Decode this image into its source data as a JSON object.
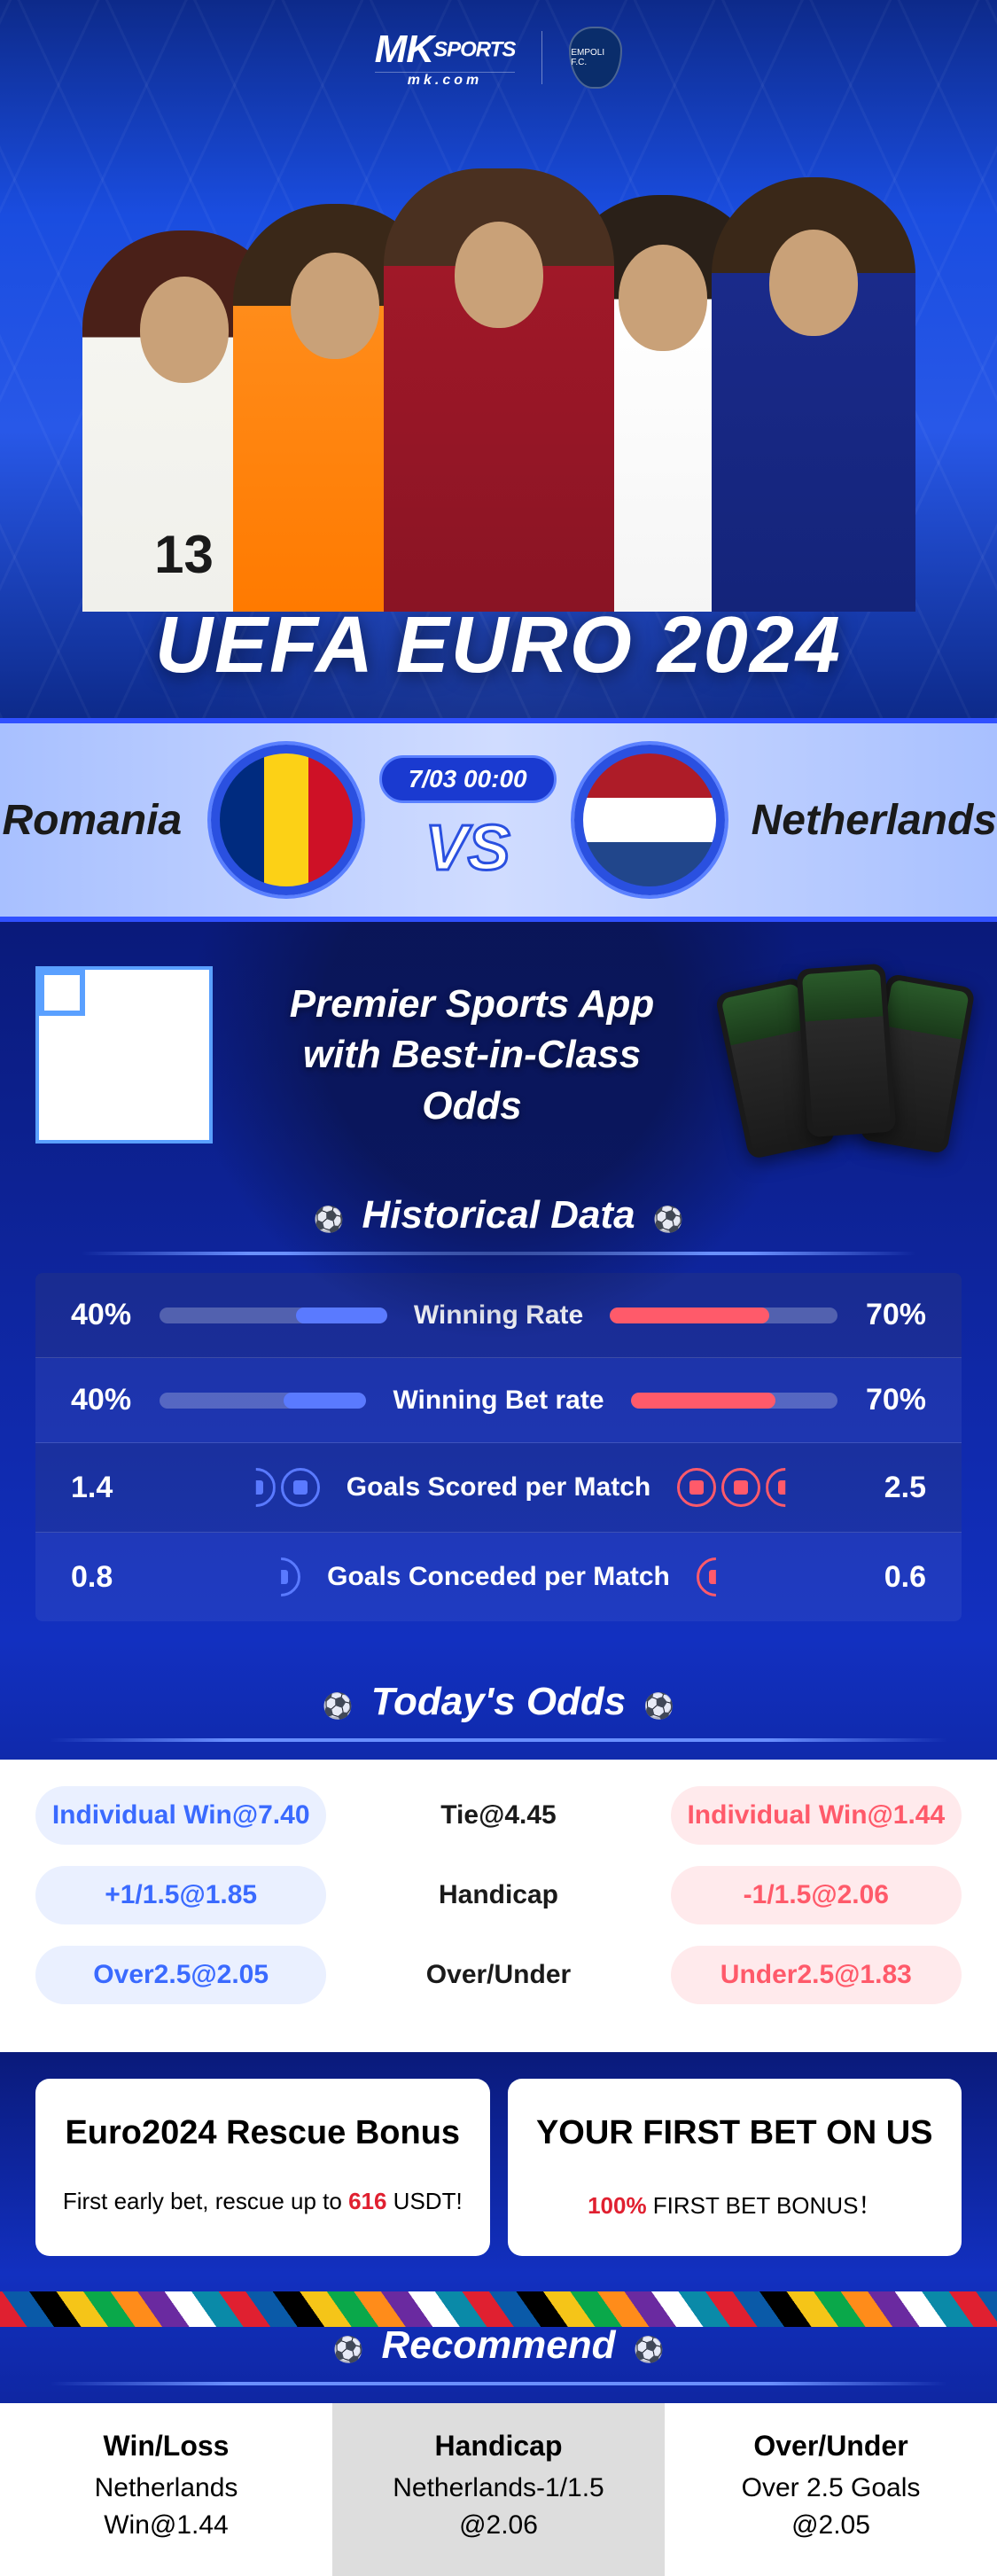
{
  "brand": {
    "name": "MK",
    "suffix": "SPORTS",
    "sub": "mk.com",
    "crest": "EMPOLI F.C."
  },
  "hero": {
    "title": "UEFA EURO 2024",
    "jersey_number": "13",
    "player_colors": {
      "p1_shirt": "#f5f5f0",
      "p2_shirt": "#ff8c1a",
      "p3_shirt": "#a01828",
      "p4_shirt": "#ffffff",
      "p5_shirt": "#1a2a8a"
    }
  },
  "match": {
    "home": "Romania",
    "away": "Netherlands",
    "time": "7/03 00:00",
    "vs": "VS",
    "flag_home": {
      "c1": "#002b7f",
      "c2": "#fcd116",
      "c3": "#ce1126"
    },
    "flag_away": {
      "c1": "#ae1c28",
      "c2": "#ffffff",
      "c3": "#21468b"
    }
  },
  "promo": {
    "line1": "Premier Sports App",
    "line2": "with Best-in-Class Odds"
  },
  "historical": {
    "title": "Historical Data",
    "rows": [
      {
        "label": "Winning Rate",
        "left": "40%",
        "right": "70%",
        "left_pct": 40,
        "right_pct": 70,
        "type": "bar"
      },
      {
        "label": "Winning Bet rate",
        "left": "40%",
        "right": "70%",
        "left_pct": 40,
        "right_pct": 70,
        "type": "bar"
      },
      {
        "label": "Goals Scored per Match",
        "left": "1.4",
        "right": "2.5",
        "left_balls": 1.4,
        "right_balls": 2.5,
        "type": "balls"
      },
      {
        "label": "Goals Conceded per Match",
        "left": "0.8",
        "right": "0.6",
        "left_balls": 0.8,
        "right_balls": 0.6,
        "type": "balls"
      }
    ],
    "color_left": "#5a7aff",
    "color_right": "#ff5a6a"
  },
  "odds": {
    "title": "Today's Odds",
    "rows": [
      {
        "left": "Individual Win@7.40",
        "center": "Tie@4.45",
        "right": "Individual Win@1.44"
      },
      {
        "left": "+1/1.5@1.85",
        "center": "Handicap",
        "right": "-1/1.5@2.06"
      },
      {
        "left": "Over2.5@2.05",
        "center": "Over/Under",
        "right": "Under2.5@1.83"
      }
    ],
    "pill_left_bg": "#eaf0ff",
    "pill_left_fg": "#3a6aff",
    "pill_right_bg": "#ffeaec",
    "pill_right_fg": "#ff5a6a"
  },
  "bonus": {
    "left": {
      "title": "Euro2024 Rescue Bonus",
      "pre": "First early bet, rescue up to ",
      "amount": "616",
      "post": " USDT!"
    },
    "right": {
      "title": "YOUR FIRST BET ON US",
      "pre": "",
      "amount": "100%",
      "post": " FIRST BET BONUS！"
    }
  },
  "recommend": {
    "title": "Recommend",
    "cols": [
      {
        "h": "Win/Loss",
        "v1": "Netherlands",
        "v2": "Win@1.44"
      },
      {
        "h": "Handicap",
        "v1": "Netherlands-1/1.5",
        "v2": "@2.06"
      },
      {
        "h": "Over/Under",
        "v1": "Over 2.5 Goals",
        "v2": "@2.05"
      }
    ]
  },
  "colors": {
    "blue_deep": "#0a1a7a",
    "blue_mid": "#1230c0",
    "blue_border": "#3050ff",
    "red": "#e02030",
    "white": "#ffffff"
  }
}
